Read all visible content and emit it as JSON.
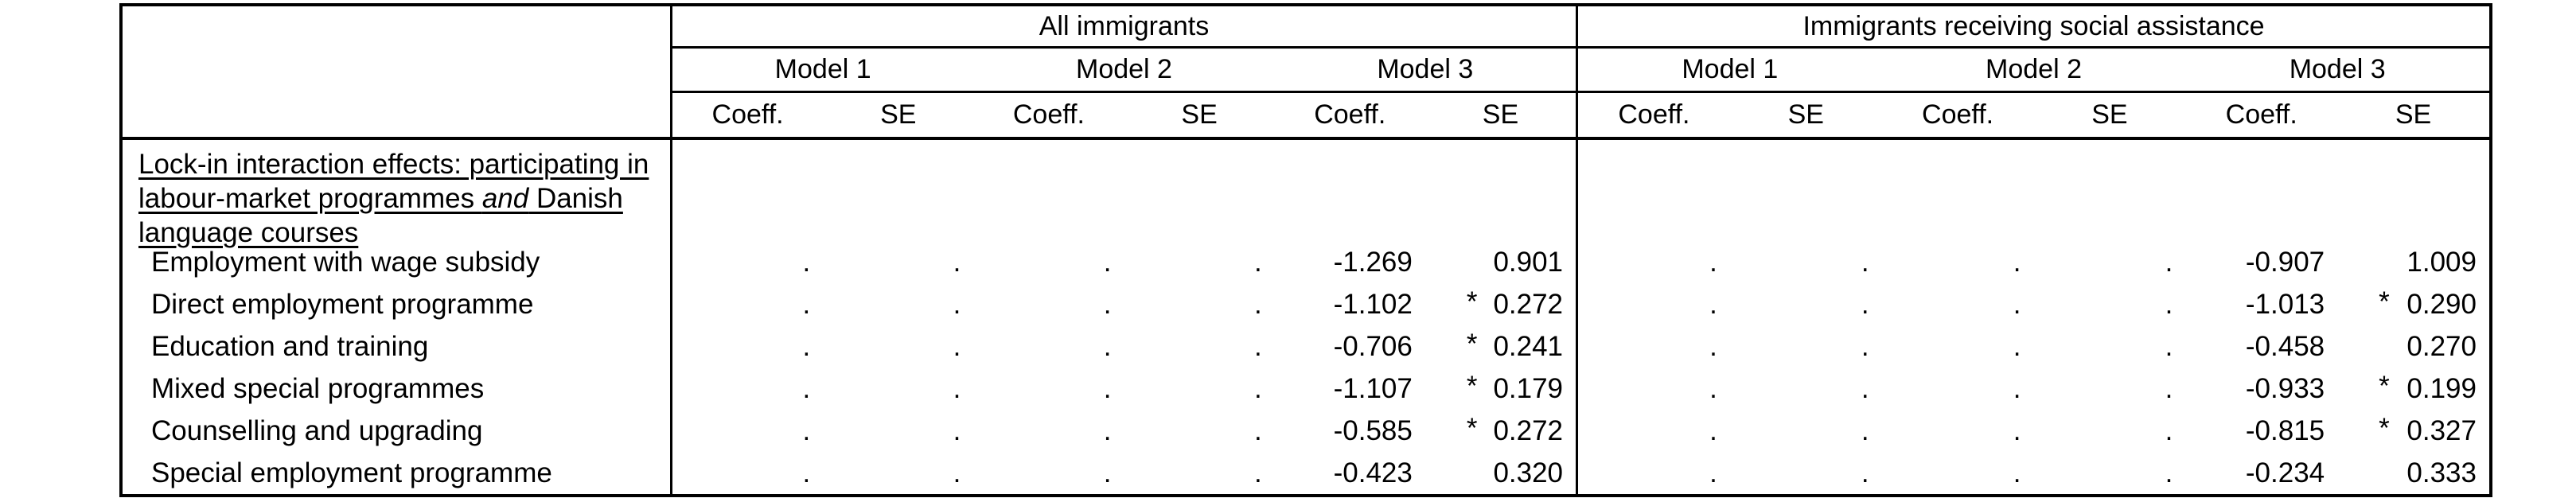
{
  "colors": {
    "text": "#000000",
    "border": "#000000",
    "background": "#ffffff"
  },
  "table": {
    "groups": [
      {
        "title": "All immigrants"
      },
      {
        "title": "Immigrants receiving social assistance"
      }
    ],
    "model_headers": [
      "Model 1",
      "Model 2",
      "Model 3"
    ],
    "stat_headers": [
      "Coeff.",
      "SE"
    ],
    "section_heading": {
      "line1": "Lock-in interaction effects: participating in",
      "line2_pre": "labour-market programmes ",
      "line2_italic": "and",
      "line2_post": " Danish",
      "line3": "language courses"
    },
    "rows": [
      {
        "label": "Employment with wage subsidy",
        "cells": [
          ".",
          ".",
          ".",
          ".",
          "-1.269",
          "",
          "0.901",
          ".",
          ".",
          ".",
          ".",
          "-0.907",
          "",
          "1.009"
        ]
      },
      {
        "label": "Direct employment programme",
        "cells": [
          ".",
          ".",
          ".",
          ".",
          "-1.102",
          "*",
          "0.272",
          ".",
          ".",
          ".",
          ".",
          "-1.013",
          "*",
          "0.290"
        ]
      },
      {
        "label": "Education and training",
        "cells": [
          ".",
          ".",
          ".",
          ".",
          "-0.706",
          "*",
          "0.241",
          ".",
          ".",
          ".",
          ".",
          "-0.458",
          "",
          "0.270"
        ]
      },
      {
        "label": "Mixed special programmes",
        "cells": [
          ".",
          ".",
          ".",
          ".",
          "-1.107",
          "*",
          "0.179",
          ".",
          ".",
          ".",
          ".",
          "-0.933",
          "*",
          "0.199"
        ]
      },
      {
        "label": "Counselling and upgrading",
        "cells": [
          ".",
          ".",
          ".",
          ".",
          "-0.585",
          "*",
          "0.272",
          ".",
          ".",
          ".",
          ".",
          "-0.815",
          "*",
          "0.327"
        ]
      },
      {
        "label": "Special employment programme",
        "cells": [
          ".",
          ".",
          ".",
          ".",
          "-0.423",
          "",
          "0.320",
          ".",
          ".",
          ".",
          ".",
          "-0.234",
          "",
          "0.333"
        ]
      }
    ]
  }
}
